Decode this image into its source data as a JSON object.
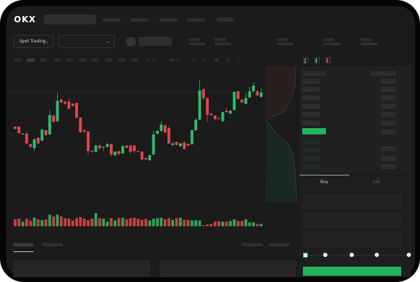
{
  "header": {
    "logo": "OKX",
    "spot_dropdown": "Spot Trading",
    "chevron": "⌄"
  },
  "order_form": {
    "tabs": [
      {
        "label": "Buy",
        "active": true
      },
      {
        "label": "Sell",
        "active": false
      }
    ],
    "slider_percent": 0
  },
  "colors": {
    "up": "#2ebd6b",
    "down": "#e0474c",
    "background": "#1b1b1b",
    "accent": "#22b35e"
  },
  "chart_data": {
    "type": "candlestick",
    "ohlc": [
      [
        68,
        69,
        64,
        65
      ],
      [
        68,
        69,
        58,
        59
      ],
      [
        57,
        59,
        56,
        58
      ],
      [
        58,
        63,
        43,
        44
      ],
      [
        43,
        44,
        37,
        39
      ],
      [
        37,
        51,
        33,
        50
      ],
      [
        52,
        53,
        43,
        44
      ],
      [
        48,
        65,
        47,
        64
      ],
      [
        63,
        64,
        55,
        56
      ],
      [
        57,
        92,
        56,
        85
      ],
      [
        84,
        86,
        74,
        75
      ],
      [
        76,
        117,
        75,
        105
      ],
      [
        107,
        108,
        102,
        103
      ],
      [
        104,
        105,
        99,
        101
      ],
      [
        104,
        109,
        93,
        94
      ],
      [
        101,
        102,
        97,
        98
      ],
      [
        102,
        103,
        80,
        81
      ],
      [
        81,
        82,
        59,
        60
      ],
      [
        63,
        64,
        59,
        61
      ],
      [
        61,
        62,
        28,
        33
      ],
      [
        33,
        35,
        31,
        32
      ],
      [
        32,
        42,
        31,
        41
      ],
      [
        41,
        44,
        35,
        37
      ],
      [
        38,
        40,
        33,
        39
      ],
      [
        39,
        45,
        38,
        43
      ],
      [
        43,
        44,
        25,
        28
      ],
      [
        27,
        33,
        26,
        32
      ],
      [
        33,
        34,
        27,
        29
      ],
      [
        30,
        42,
        29,
        40
      ],
      [
        41,
        42,
        37,
        38
      ],
      [
        41,
        42,
        29,
        32
      ],
      [
        41,
        42,
        30,
        33
      ],
      [
        33,
        34,
        31,
        32
      ],
      [
        32,
        33,
        20,
        21
      ],
      [
        23,
        24,
        20,
        21
      ],
      [
        20,
        28,
        19,
        27
      ],
      [
        28,
        62,
        27,
        57
      ],
      [
        58,
        63,
        57,
        62
      ],
      [
        62,
        76,
        61,
        71
      ],
      [
        70,
        71,
        59,
        60
      ],
      [
        66,
        69,
        43,
        44
      ],
      [
        42,
        46,
        40,
        44
      ],
      [
        46,
        47,
        41,
        42
      ],
      [
        40,
        45,
        39,
        44
      ],
      [
        45,
        48,
        35,
        36
      ],
      [
        43,
        44,
        40,
        41
      ],
      [
        43,
        64,
        42,
        63
      ],
      [
        63,
        80,
        62,
        78
      ],
      [
        78,
        135,
        77,
        120
      ],
      [
        122,
        123,
        106,
        109
      ],
      [
        109,
        110,
        75,
        85
      ],
      [
        87,
        88,
        83,
        85
      ],
      [
        84,
        85,
        77,
        79
      ],
      [
        80,
        82,
        78,
        79
      ],
      [
        76,
        90,
        75,
        89
      ],
      [
        91,
        95,
        88,
        89
      ],
      [
        87,
        92,
        86,
        91
      ],
      [
        92,
        119,
        91,
        118
      ],
      [
        119,
        120,
        107,
        108
      ],
      [
        107,
        108,
        102,
        103
      ],
      [
        101,
        116,
        100,
        109
      ],
      [
        110,
        125,
        109,
        119
      ],
      [
        119,
        132,
        118,
        127
      ],
      [
        119,
        120,
        112,
        113
      ],
      [
        111,
        123,
        110,
        117
      ]
    ],
    "volume": [
      30,
      33,
      20,
      33,
      25,
      38,
      30,
      27,
      30,
      50,
      42,
      50,
      42,
      35,
      33,
      25,
      35,
      40,
      33,
      27,
      33,
      57,
      35,
      33,
      20,
      35,
      25,
      35,
      37,
      30,
      35,
      37,
      33,
      28,
      33,
      25,
      33,
      35,
      37,
      30,
      35,
      27,
      35,
      37,
      28,
      27,
      25,
      27,
      25,
      5,
      8,
      10,
      20,
      22,
      20,
      20,
      23,
      30,
      23,
      23,
      30,
      17,
      17,
      10,
      10
    ]
  }
}
